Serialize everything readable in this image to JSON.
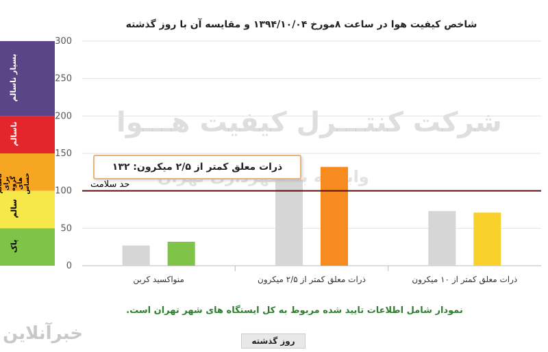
{
  "title": "شاخص کیفیت هوا در ساعت ۸مورخ ۱۳۹۴/۱۰/۰۴ و مقایسه آن با روز گذشته",
  "colors": {
    "band_very_unhealthy": "#5b4589",
    "band_unhealthy": "#e3262b",
    "band_sensitive": "#f6a623",
    "band_moderate": "#f7e84a",
    "band_good": "#7fc348",
    "bar_previous": "#d6d6d6",
    "threshold_line": "#5a0c0c"
  },
  "bands": [
    {
      "label": "بسیار ناسالم",
      "from": 200,
      "to": 300
    },
    {
      "label": "ناسالم",
      "from": 150,
      "to": 200
    },
    {
      "label": "ناسالم برای گروه های حساس",
      "from": 100,
      "to": 150
    },
    {
      "label": "سالم",
      "from": 50,
      "to": 100
    },
    {
      "label": "پاک",
      "from": 0,
      "to": 50
    }
  ],
  "callout": "ذرات معلق کمتر از ۲/۵ میکرون: ۱۳۲",
  "threshold_label": "حد سلامت",
  "watermark": "شرکت کنتـــرل کیفیت هـــوا",
  "watermark_sub": "وابسته به شهرداری تهران",
  "footnote": "نمودار شامل اطلاعات تایید شده مربوط به کل ایستگاه های شهر تهران است.",
  "legend_label": "روز گذشته",
  "logo": "خبرآنلاین",
  "chart_data": {
    "type": "bar",
    "categories": [
      "منواکسید کربن",
      "ذرات معلق کمتر از ۲/۵ میکرون",
      "ذرات معلق کمتر از ۱۰ میکرون"
    ],
    "series": [
      {
        "name": "روز گذشته",
        "values": [
          27,
          115,
          73
        ],
        "color": "#d6d6d6"
      },
      {
        "values": [
          32,
          132,
          71
        ],
        "colors": [
          "#7fc348",
          "#f78b20",
          "#f9d12d"
        ]
      }
    ],
    "ylim": [
      0,
      300
    ],
    "yticks": [
      0,
      50,
      100,
      150,
      200,
      250,
      300
    ],
    "threshold": 100,
    "grid": true
  }
}
